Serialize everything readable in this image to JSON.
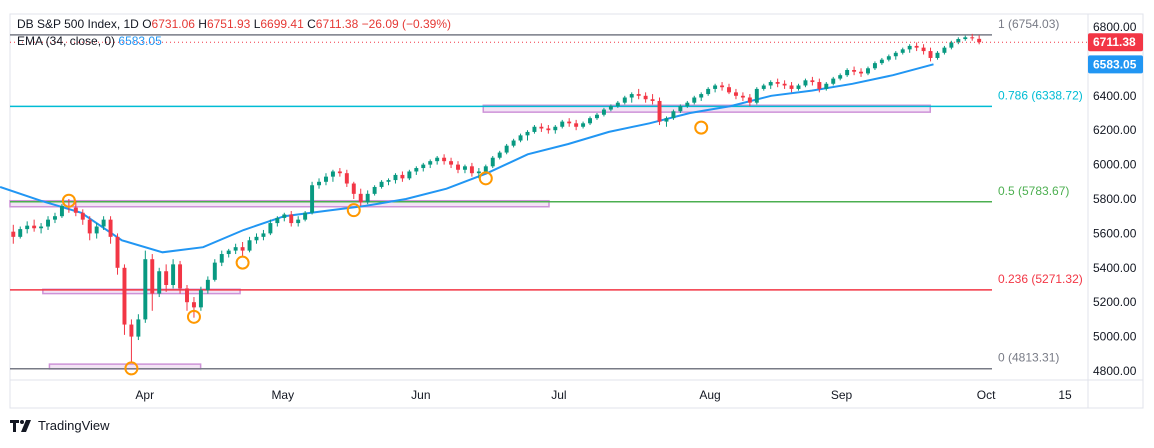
{
  "header": {
    "symbol": "DB S&P 500 Index, 1D",
    "open_label": "O",
    "open": "6731.06",
    "high_label": "H",
    "high": "6751.93",
    "low_label": "L",
    "low": "6699.41",
    "close_label": "C",
    "close": "6711.38",
    "change": "−26.09 (−0.39%)",
    "ema_label": "EMA (34, close, 0)",
    "ema_value": "6583.05"
  },
  "footer": {
    "brand": "TradingView",
    "logo_icon": "tradingview-logo-icon"
  },
  "colors": {
    "up": "#089981",
    "down": "#f23645",
    "ema": "#2196f3",
    "price_badge": "#f23645",
    "ema_badge": "#2196f3",
    "zone": "#ce93d8"
  },
  "chart_data": {
    "type": "candlestick",
    "ylim": [
      4760,
      6860
    ],
    "yticks": [
      "4800.00",
      "5000.00",
      "5200.00",
      "5400.00",
      "5600.00",
      "5800.00",
      "6000.00",
      "6200.00",
      "6400.00",
      "6600.00",
      "6800.00"
    ],
    "xticks": [
      {
        "label": "Apr",
        "i": 20
      },
      {
        "label": "May",
        "i": 41
      },
      {
        "label": "Jun",
        "i": 62
      },
      {
        "label": "Jul",
        "i": 83
      },
      {
        "label": "Aug",
        "i": 106
      },
      {
        "label": "Sep",
        "i": 126
      },
      {
        "label": "Oct",
        "i": 148
      },
      {
        "label": "15",
        "i": 160
      }
    ],
    "n_slots": 164,
    "fib_levels": [
      {
        "label": "1 (6754.03)",
        "value": 6754.03,
        "color": "#787b86"
      },
      {
        "label": "0.786 (6338.72)",
        "value": 6338.72,
        "color": "#00bcd4"
      },
      {
        "label": "0.5 (5783.67)",
        "value": 5783.67,
        "color": "#4caf50"
      },
      {
        "label": "0.236 (5271.32)",
        "value": 5271.32,
        "color": "#f23645"
      },
      {
        "label": "0 (4813.31)",
        "value": 4813.31,
        "color": "#787b86"
      }
    ],
    "last_price": {
      "value": 6711.38,
      "label": "6711.38"
    },
    "ema_last": {
      "value": 6583.05,
      "label": "6583.05"
    },
    "zones": [
      {
        "i0": 0,
        "i1": 82,
        "low": 5755,
        "high": 5790
      },
      {
        "i0": 5,
        "i1": 35,
        "low": 5250,
        "high": 5275
      },
      {
        "i0": 6,
        "i1": 29,
        "low": 4812,
        "high": 4840
      },
      {
        "i0": 72,
        "i1": 140,
        "low": 6305,
        "high": 6345
      }
    ],
    "circles": [
      {
        "i": 8,
        "value": 5790
      },
      {
        "i": 17,
        "value": 4815
      },
      {
        "i": 26,
        "value": 5115
      },
      {
        "i": 33,
        "value": 5430
      },
      {
        "i": 49,
        "value": 5735
      },
      {
        "i": 68,
        "value": 5920
      },
      {
        "i": 99,
        "value": 6215
      }
    ],
    "ema_line": [
      5870,
      5790,
      5720,
      5560,
      5490,
      5520,
      5620,
      5700,
      5730,
      5760,
      5800,
      5860,
      5950,
      6060,
      6120,
      6190,
      6240,
      6300,
      6340,
      6400,
      6430,
      6470,
      6520,
      6583.05
    ],
    "ohlc": [
      [
        5610,
        5650,
        5540,
        5580
      ],
      [
        5580,
        5640,
        5570,
        5625
      ],
      [
        5625,
        5670,
        5600,
        5645
      ],
      [
        5645,
        5680,
        5610,
        5630
      ],
      [
        5630,
        5660,
        5600,
        5640
      ],
      [
        5640,
        5700,
        5620,
        5680
      ],
      [
        5680,
        5720,
        5660,
        5700
      ],
      [
        5700,
        5770,
        5690,
        5760
      ],
      [
        5760,
        5800,
        5720,
        5750
      ],
      [
        5750,
        5790,
        5700,
        5720
      ],
      [
        5720,
        5740,
        5650,
        5680
      ],
      [
        5680,
        5700,
        5560,
        5600
      ],
      [
        5600,
        5660,
        5570,
        5640
      ],
      [
        5640,
        5700,
        5620,
        5680
      ],
      [
        5680,
        5700,
        5540,
        5580
      ],
      [
        5580,
        5600,
        5360,
        5400
      ],
      [
        5400,
        5420,
        5010,
        5070
      ],
      [
        5070,
        5100,
        4850,
        5000
      ],
      [
        5000,
        5130,
        4980,
        5100
      ],
      [
        5100,
        5500,
        5080,
        5450
      ],
      [
        5450,
        5480,
        5150,
        5250
      ],
      [
        5250,
        5400,
        5230,
        5380
      ],
      [
        5380,
        5420,
        5260,
        5300
      ],
      [
        5300,
        5450,
        5280,
        5420
      ],
      [
        5420,
        5440,
        5250,
        5280
      ],
      [
        5280,
        5300,
        5150,
        5200
      ],
      [
        5200,
        5230,
        5110,
        5170
      ],
      [
        5170,
        5290,
        5150,
        5270
      ],
      [
        5270,
        5350,
        5250,
        5330
      ],
      [
        5330,
        5450,
        5320,
        5430
      ],
      [
        5430,
        5500,
        5410,
        5480
      ],
      [
        5480,
        5510,
        5460,
        5500
      ],
      [
        5500,
        5540,
        5480,
        5520
      ],
      [
        5520,
        5550,
        5460,
        5500
      ],
      [
        5500,
        5580,
        5490,
        5560
      ],
      [
        5560,
        5600,
        5540,
        5580
      ],
      [
        5580,
        5620,
        5560,
        5600
      ],
      [
        5600,
        5680,
        5590,
        5660
      ],
      [
        5660,
        5700,
        5640,
        5690
      ],
      [
        5690,
        5720,
        5670,
        5710
      ],
      [
        5710,
        5730,
        5640,
        5660
      ],
      [
        5660,
        5700,
        5640,
        5680
      ],
      [
        5680,
        5730,
        5670,
        5720
      ],
      [
        5720,
        5900,
        5710,
        5880
      ],
      [
        5880,
        5920,
        5860,
        5900
      ],
      [
        5900,
        5950,
        5880,
        5930
      ],
      [
        5930,
        5970,
        5900,
        5960
      ],
      [
        5960,
        5980,
        5930,
        5950
      ],
      [
        5950,
        5970,
        5870,
        5890
      ],
      [
        5890,
        5900,
        5800,
        5830
      ],
      [
        5830,
        5860,
        5760,
        5780
      ],
      [
        5780,
        5850,
        5770,
        5830
      ],
      [
        5830,
        5880,
        5820,
        5870
      ],
      [
        5870,
        5910,
        5860,
        5900
      ],
      [
        5900,
        5920,
        5880,
        5910
      ],
      [
        5910,
        5950,
        5890,
        5940
      ],
      [
        5940,
        5960,
        5900,
        5920
      ],
      [
        5920,
        5970,
        5910,
        5960
      ],
      [
        5960,
        5990,
        5940,
        5980
      ],
      [
        5980,
        6010,
        5960,
        6000
      ],
      [
        6000,
        6030,
        5980,
        6020
      ],
      [
        6020,
        6050,
        6000,
        6040
      ],
      [
        6040,
        6060,
        6000,
        6020
      ],
      [
        6020,
        6040,
        5980,
        6000
      ],
      [
        6000,
        6020,
        5950,
        5970
      ],
      [
        5970,
        6000,
        5950,
        5990
      ],
      [
        5990,
        6010,
        5930,
        5950
      ],
      [
        5950,
        5980,
        5920,
        5960
      ],
      [
        5960,
        6000,
        5950,
        5990
      ],
      [
        5990,
        6050,
        5980,
        6040
      ],
      [
        6040,
        6080,
        6030,
        6070
      ],
      [
        6070,
        6120,
        6060,
        6110
      ],
      [
        6110,
        6150,
        6100,
        6140
      ],
      [
        6140,
        6180,
        6130,
        6170
      ],
      [
        6170,
        6200,
        6140,
        6190
      ],
      [
        6190,
        6230,
        6180,
        6220
      ],
      [
        6220,
        6240,
        6190,
        6210
      ],
      [
        6210,
        6230,
        6180,
        6200
      ],
      [
        6200,
        6230,
        6180,
        6220
      ],
      [
        6220,
        6260,
        6210,
        6250
      ],
      [
        6250,
        6270,
        6220,
        6240
      ],
      [
        6240,
        6260,
        6200,
        6220
      ],
      [
        6220,
        6250,
        6210,
        6240
      ],
      [
        6240,
        6280,
        6230,
        6270
      ],
      [
        6270,
        6300,
        6260,
        6290
      ],
      [
        6290,
        6330,
        6280,
        6320
      ],
      [
        6320,
        6350,
        6310,
        6340
      ],
      [
        6340,
        6370,
        6330,
        6360
      ],
      [
        6360,
        6400,
        6350,
        6390
      ],
      [
        6390,
        6420,
        6360,
        6410
      ],
      [
        6410,
        6440,
        6380,
        6400
      ],
      [
        6400,
        6420,
        6360,
        6380
      ],
      [
        6380,
        6410,
        6350,
        6370
      ],
      [
        6370,
        6390,
        6230,
        6250
      ],
      [
        6250,
        6280,
        6220,
        6270
      ],
      [
        6270,
        6320,
        6260,
        6310
      ],
      [
        6310,
        6350,
        6300,
        6340
      ],
      [
        6340,
        6370,
        6330,
        6360
      ],
      [
        6360,
        6400,
        6350,
        6390
      ],
      [
        6390,
        6420,
        6370,
        6410
      ],
      [
        6410,
        6450,
        6400,
        6440
      ],
      [
        6440,
        6470,
        6420,
        6460
      ],
      [
        6460,
        6480,
        6430,
        6450
      ],
      [
        6450,
        6470,
        6410,
        6420
      ],
      [
        6420,
        6440,
        6380,
        6400
      ],
      [
        6400,
        6420,
        6370,
        6390
      ],
      [
        6390,
        6410,
        6340,
        6360
      ],
      [
        6360,
        6450,
        6350,
        6440
      ],
      [
        6440,
        6470,
        6430,
        6460
      ],
      [
        6460,
        6490,
        6440,
        6480
      ],
      [
        6480,
        6500,
        6450,
        6470
      ],
      [
        6470,
        6490,
        6440,
        6460
      ],
      [
        6460,
        6480,
        6420,
        6440
      ],
      [
        6440,
        6470,
        6430,
        6460
      ],
      [
        6460,
        6500,
        6450,
        6490
      ],
      [
        6490,
        6510,
        6460,
        6480
      ],
      [
        6480,
        6500,
        6420,
        6440
      ],
      [
        6440,
        6480,
        6430,
        6470
      ],
      [
        6470,
        6510,
        6460,
        6500
      ],
      [
        6500,
        6530,
        6490,
        6520
      ],
      [
        6520,
        6560,
        6510,
        6550
      ],
      [
        6550,
        6570,
        6520,
        6540
      ],
      [
        6540,
        6560,
        6510,
        6530
      ],
      [
        6530,
        6570,
        6520,
        6560
      ],
      [
        6560,
        6600,
        6550,
        6590
      ],
      [
        6590,
        6620,
        6580,
        6610
      ],
      [
        6610,
        6640,
        6600,
        6630
      ],
      [
        6630,
        6660,
        6610,
        6650
      ],
      [
        6650,
        6680,
        6640,
        6670
      ],
      [
        6670,
        6700,
        6650,
        6690
      ],
      [
        6690,
        6710,
        6660,
        6680
      ],
      [
        6680,
        6700,
        6640,
        6660
      ],
      [
        6660,
        6680,
        6600,
        6620
      ],
      [
        6620,
        6660,
        6610,
        6650
      ],
      [
        6650,
        6690,
        6640,
        6680
      ],
      [
        6680,
        6720,
        6670,
        6710
      ],
      [
        6710,
        6740,
        6700,
        6730
      ],
      [
        6730,
        6750,
        6720,
        6740
      ],
      [
        6740,
        6760,
        6720,
        6737
      ],
      [
        6731.06,
        6751.93,
        6699.41,
        6711.38
      ]
    ]
  }
}
